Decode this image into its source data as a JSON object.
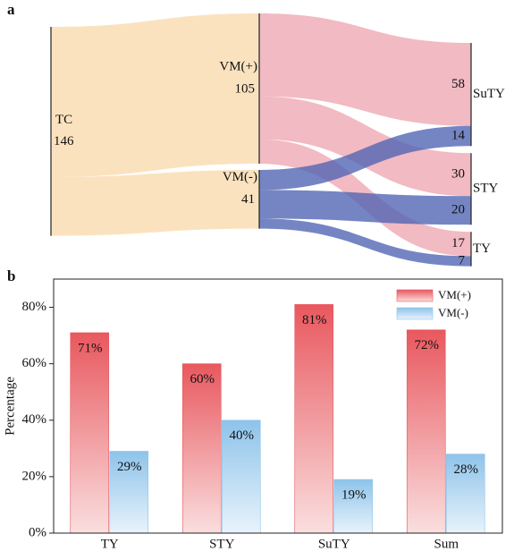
{
  "chart_data": [
    {
      "type": "sankey",
      "panel": "a",
      "nodes": [
        {
          "name": "TC",
          "value": 146,
          "color": "#fbe2bf"
        },
        {
          "name": "VM(+)",
          "value": 105,
          "color": "#eea7b1"
        },
        {
          "name": "VM(-)",
          "value": 41,
          "color": "#4e63b4"
        },
        {
          "name": "SuTY"
        },
        {
          "name": "STY"
        },
        {
          "name": "TY"
        }
      ],
      "links": [
        {
          "source": "TC",
          "target": "VM(+)"
        },
        {
          "source": "TC",
          "target": "VM(-)"
        },
        {
          "source": "VM(+)",
          "target": "SuTY",
          "value": 58
        },
        {
          "source": "VM(+)",
          "target": "STY",
          "value": 30
        },
        {
          "source": "VM(+)",
          "target": "TY",
          "value": 17
        },
        {
          "source": "VM(-)",
          "target": "SuTY",
          "value": 14
        },
        {
          "source": "VM(-)",
          "target": "STY",
          "value": 20
        },
        {
          "source": "VM(-)",
          "target": "TY",
          "value": 7
        }
      ]
    },
    {
      "type": "bar",
      "panel": "b",
      "ylabel": "Percentage",
      "categories": [
        "TY",
        "STY",
        "SuTY",
        "Sum"
      ],
      "series": [
        {
          "name": "VM(+)",
          "color": "#e8585e",
          "values": [
            71,
            60,
            81,
            72
          ],
          "value_labels": [
            "71%",
            "60%",
            "81%",
            "72%"
          ]
        },
        {
          "name": "VM(-)",
          "color": "#8ec3ea",
          "values": [
            29,
            40,
            19,
            28
          ],
          "value_labels": [
            "29%",
            "40%",
            "19%",
            "28%"
          ]
        }
      ],
      "ylim": [
        0,
        90
      ],
      "yticks": [
        {
          "value": 0,
          "label": "0%"
        },
        {
          "value": 20,
          "label": "20%"
        },
        {
          "value": 40,
          "label": "40%"
        },
        {
          "value": 60,
          "label": "60%"
        },
        {
          "value": 80,
          "label": "80%"
        }
      ],
      "legend": "upper right"
    }
  ]
}
